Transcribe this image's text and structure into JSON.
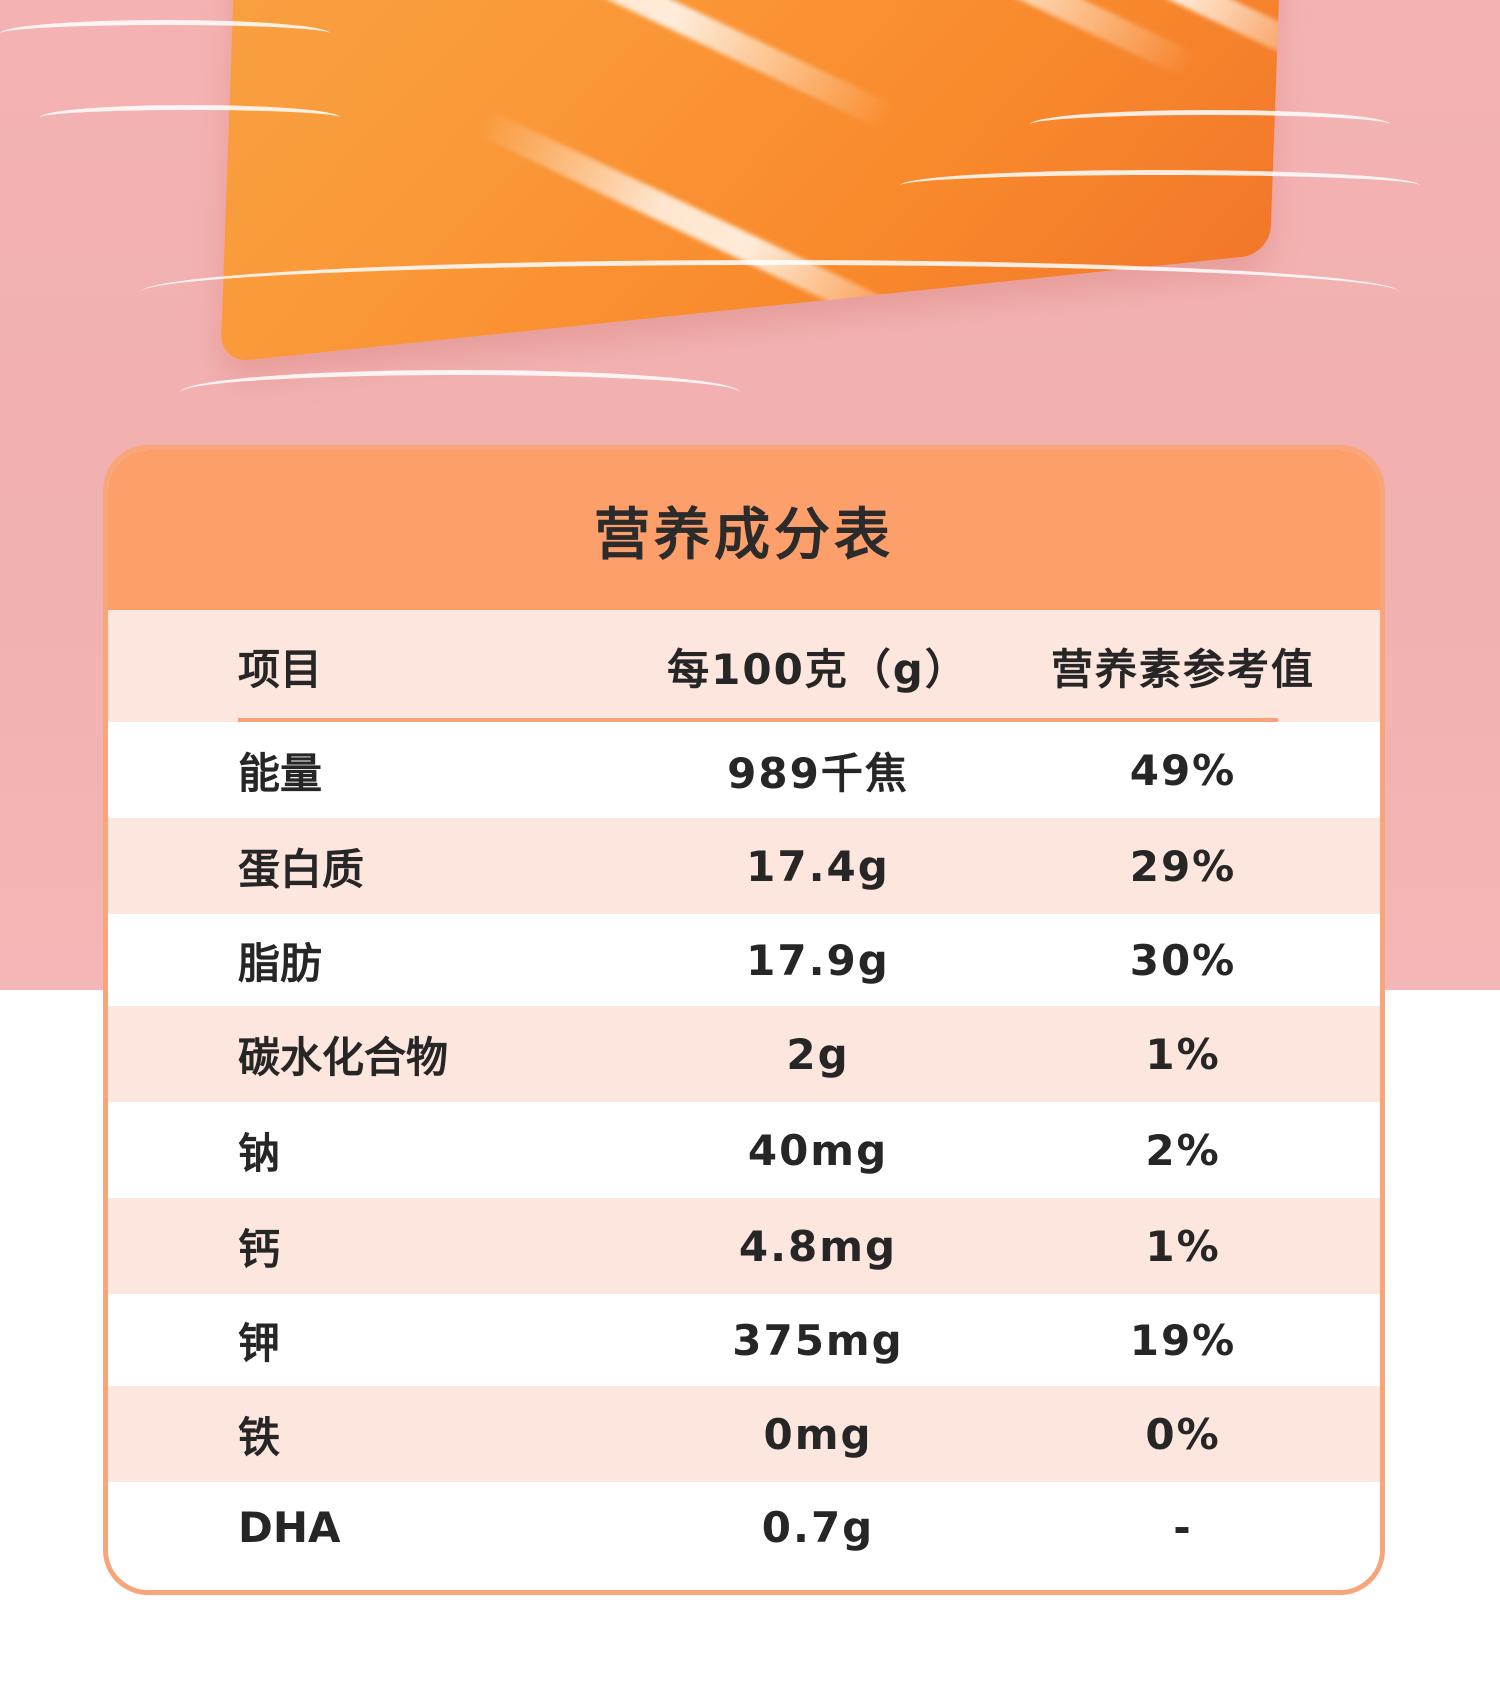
{
  "title": "营养成分表",
  "columns": [
    "项目",
    "每100克（g）",
    "营养素参考值"
  ],
  "rows": [
    {
      "item": "能量",
      "per100g": "989千焦",
      "nrv": "49%"
    },
    {
      "item": "蛋白质",
      "per100g": "17.4g",
      "nrv": "29%"
    },
    {
      "item": "脂肪",
      "per100g": "17.9g",
      "nrv": "30%"
    },
    {
      "item": "碳水化合物",
      "per100g": "2g",
      "nrv": "1%"
    },
    {
      "item": "钠",
      "per100g": "40mg",
      "nrv": "2%"
    },
    {
      "item": "钙",
      "per100g": "4.8mg",
      "nrv": "1%"
    },
    {
      "item": "钾",
      "per100g": "375mg",
      "nrv": "19%"
    },
    {
      "item": "铁",
      "per100g": "0mg",
      "nrv": "0%"
    },
    {
      "item": "DHA",
      "per100g": "0.7g",
      "nrv": "-"
    }
  ],
  "colors": {
    "background_pink": "#f4b3b2",
    "header_orange": "#fd9f6a",
    "row_tint": "#fde6dd",
    "border_orange": "#f8a57a"
  }
}
